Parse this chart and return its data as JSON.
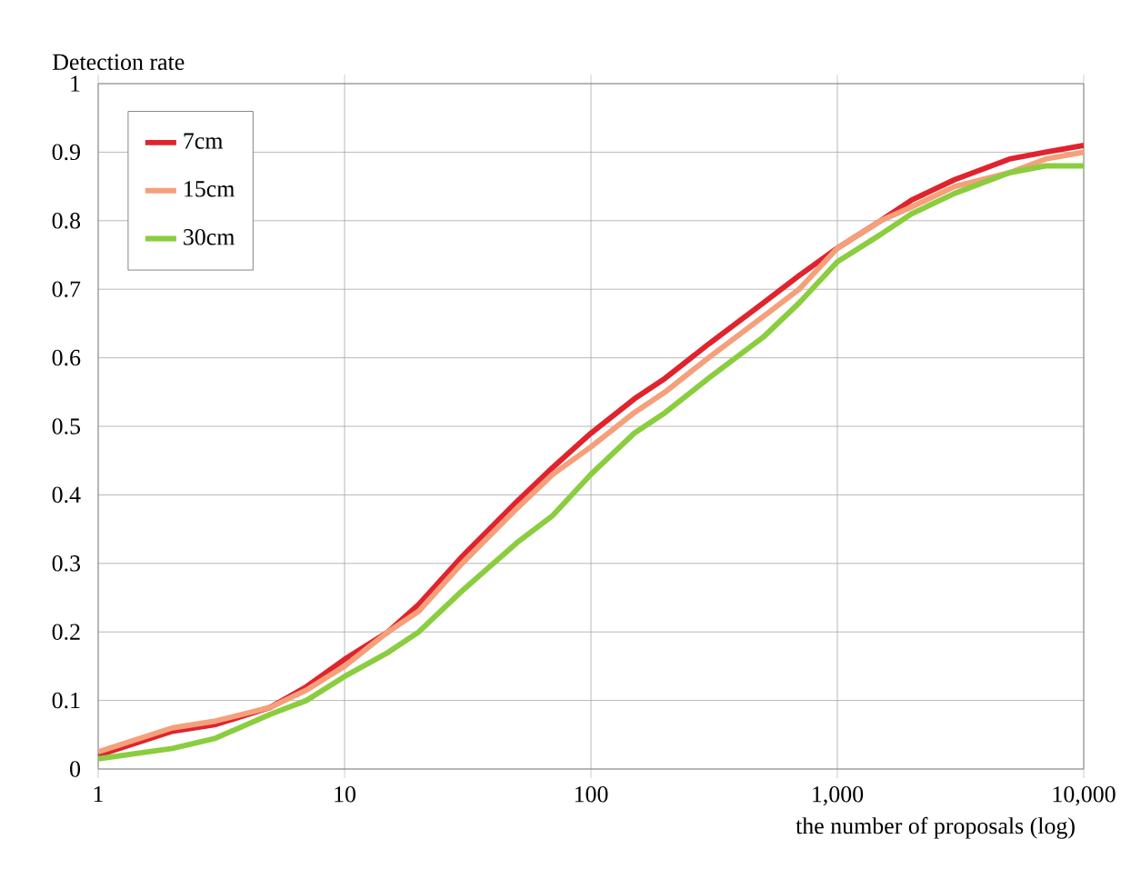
{
  "chart_data": {
    "type": "line",
    "xlabel": "the number of proposals (log)",
    "ylabel": "Detection rate",
    "log": "x",
    "x": [
      1,
      2,
      3,
      5,
      7,
      10,
      15,
      20,
      30,
      50,
      70,
      100,
      150,
      200,
      300,
      500,
      700,
      1000,
      1500,
      2000,
      3000,
      5000,
      7000,
      10000
    ],
    "series": [
      {
        "name": "7cm",
        "color": "#e0232d",
        "values": [
          0.02,
          0.055,
          0.065,
          0.09,
          0.12,
          0.16,
          0.2,
          0.24,
          0.31,
          0.39,
          0.44,
          0.49,
          0.54,
          0.57,
          0.62,
          0.68,
          0.72,
          0.76,
          0.8,
          0.83,
          0.86,
          0.89,
          0.9,
          0.91
        ]
      },
      {
        "name": "15cm",
        "color": "#f4a07a",
        "values": [
          0.025,
          0.06,
          0.07,
          0.09,
          0.115,
          0.15,
          0.2,
          0.23,
          0.3,
          0.38,
          0.43,
          0.47,
          0.52,
          0.55,
          0.6,
          0.66,
          0.7,
          0.76,
          0.8,
          0.82,
          0.85,
          0.87,
          0.89,
          0.9
        ]
      },
      {
        "name": "30cm",
        "color": "#8acd3e",
        "values": [
          0.015,
          0.03,
          0.045,
          0.08,
          0.1,
          0.135,
          0.17,
          0.2,
          0.26,
          0.33,
          0.37,
          0.43,
          0.49,
          0.52,
          0.57,
          0.63,
          0.68,
          0.74,
          0.78,
          0.81,
          0.84,
          0.87,
          0.88,
          0.88
        ]
      }
    ],
    "xlim": [
      1,
      10000
    ],
    "xticks": [
      1,
      10,
      100,
      {
        "value": 1000,
        "label": "1,000"
      },
      {
        "value": 10000,
        "label": "10,000"
      }
    ],
    "ylim": [
      0,
      1
    ],
    "yticks": [
      0,
      0.1,
      0.2,
      0.3,
      0.4,
      0.5,
      0.6,
      0.7,
      0.8,
      0.9,
      1
    ],
    "grid": true,
    "legend": "top left",
    "marker": "none",
    "line_style": "solid"
  }
}
